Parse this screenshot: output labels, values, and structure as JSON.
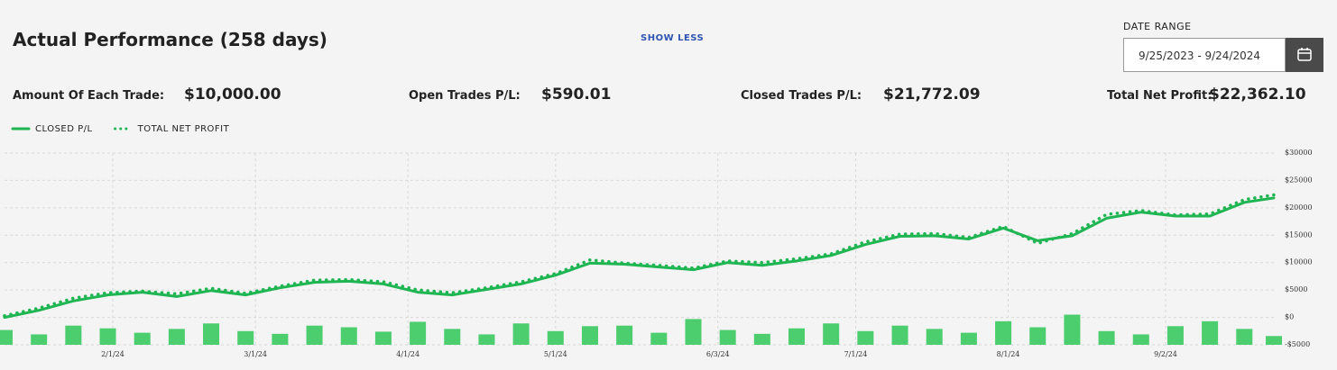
{
  "header": {
    "title": "Actual Performance (258 days)",
    "toggle": "SHOW LESS",
    "date_range_label": "DATE RANGE",
    "date_range": "9/25/2023 - 9/24/2024"
  },
  "stats": [
    {
      "label": "Amount Of Each Trade:",
      "value": "$10,000.00"
    },
    {
      "label": "Open Trades P/L:",
      "value": "$590.01"
    },
    {
      "label": "Closed Trades P/L:",
      "value": "$21,772.09"
    },
    {
      "label": "Total Net Profit:",
      "value": "$22,362.10"
    }
  ],
  "chart_data": {
    "type": "line",
    "x": [
      "1/10/24",
      "1/17/24",
      "1/24/24",
      "1/31/24",
      "2/7/24",
      "2/14/24",
      "2/21/24",
      "2/28/24",
      "3/6/24",
      "3/13/24",
      "3/20/24",
      "3/27/24",
      "4/3/24",
      "4/10/24",
      "4/17/24",
      "4/24/24",
      "5/1/24",
      "5/8/24",
      "5/15/24",
      "5/22/24",
      "5/29/24",
      "6/5/24",
      "6/12/24",
      "6/19/24",
      "6/26/24",
      "7/3/24",
      "7/10/24",
      "7/17/24",
      "7/24/24",
      "7/31/24",
      "8/7/24",
      "8/14/24",
      "8/21/24",
      "8/28/24",
      "9/4/24",
      "9/11/24",
      "9/18/24",
      "9/24/24"
    ],
    "xlim": [
      "1/10/24",
      "9/24/24"
    ],
    "xticks": [
      "2/1/24",
      "3/1/24",
      "4/1/24",
      "5/1/24",
      "6/3/24",
      "7/1/24",
      "8/1/24",
      "9/2/24"
    ],
    "ylim": [
      -5000,
      30000
    ],
    "yticks": [
      {
        "value": -5000,
        "label": "-$5000"
      },
      {
        "value": 0,
        "label": "$0"
      },
      {
        "value": 5000,
        "label": "$5000"
      },
      {
        "value": 10000,
        "label": "$10000"
      },
      {
        "value": 15000,
        "label": "$15000"
      },
      {
        "value": 20000,
        "label": "$20000"
      },
      {
        "value": 25000,
        "label": "$25000"
      },
      {
        "value": 30000,
        "label": "$30000"
      }
    ],
    "grid": true,
    "series": [
      {
        "name": "CLOSED P/L",
        "color": "#1fb553",
        "style": "solid",
        "values": [
          0,
          1300,
          3000,
          4100,
          4600,
          3800,
          4900,
          4100,
          5400,
          6400,
          6600,
          6100,
          4600,
          4100,
          5100,
          6100,
          7700,
          9900,
          9700,
          9200,
          8700,
          10000,
          9500,
          10300,
          11300,
          13300,
          14800,
          14900,
          14300,
          16300,
          14000,
          14900,
          18100,
          19200,
          18500,
          18500,
          21000,
          21800
        ]
      },
      {
        "name": "TOTAL NET PROFIT",
        "color": "#1fb553",
        "style": "dotted",
        "values": [
          300,
          1700,
          3500,
          4500,
          4800,
          4300,
          5300,
          4400,
          5700,
          6800,
          6900,
          6500,
          5000,
          4500,
          5400,
          6500,
          8000,
          10500,
          9900,
          9500,
          9000,
          10300,
          10000,
          10700,
          11600,
          13800,
          15200,
          15300,
          14600,
          16600,
          13500,
          15300,
          18800,
          19500,
          18700,
          18900,
          21500,
          22362
        ]
      },
      {
        "type": "bar",
        "color": "#4ccd6e",
        "values": [
          -2300,
          -3100,
          -1500,
          -2000,
          -2800,
          -2100,
          -1100,
          -2500,
          -3000,
          -1500,
          -1800,
          -2600,
          -800,
          -2100,
          -3100,
          -1100,
          -2500,
          -1600,
          -1500,
          -2800,
          -300,
          -2300,
          -3000,
          -2000,
          -1100,
          -2500,
          -1500,
          -2100,
          -2800,
          -700,
          -1800,
          500,
          -2500,
          -3100,
          -1600,
          -700,
          -2100,
          -3400
        ]
      }
    ]
  }
}
